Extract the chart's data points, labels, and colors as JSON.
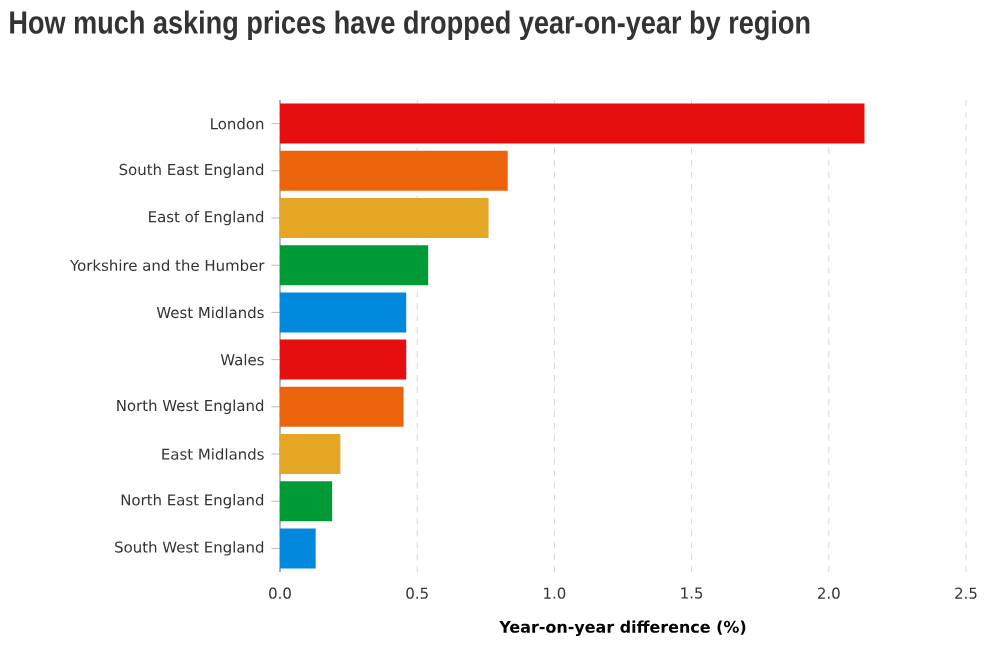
{
  "chart_data": {
    "type": "bar",
    "orientation": "horizontal",
    "title": "How much asking prices have dropped year-on-year by region",
    "xlabel": "Year-on-year difference (%)",
    "categories": [
      "London",
      "South East England",
      "East of England",
      "Yorkshire and the Humber",
      "West Midlands",
      "Wales",
      "North West England",
      "East Midlands",
      "North East England",
      "South West England"
    ],
    "values": [
      2.13,
      0.83,
      0.76,
      0.54,
      0.46,
      0.46,
      0.45,
      0.22,
      0.19,
      0.13
    ],
    "colors": [
      "#e60f10",
      "#eb640c",
      "#e3a625",
      "#009a36",
      "#0089dd",
      "#e60f10",
      "#eb640c",
      "#e3a625",
      "#009a36",
      "#0089dd"
    ],
    "xlim": [
      0,
      2.5
    ],
    "xticks": [
      {
        "value": 0,
        "label": "0.0"
      },
      0.5,
      {
        "value": 1,
        "label": "1.0"
      },
      1.5,
      {
        "value": 2,
        "label": "2.0"
      },
      2.5
    ],
    "grid": "x"
  }
}
